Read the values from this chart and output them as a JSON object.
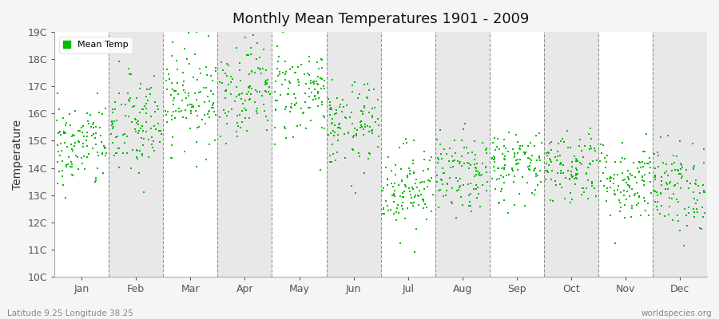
{
  "title": "Monthly Mean Temperatures 1901 - 2009",
  "ylabel": "Temperature",
  "xlabel_labels": [
    "Jan",
    "Feb",
    "Mar",
    "Apr",
    "May",
    "Jun",
    "Jul",
    "Aug",
    "Sep",
    "Oct",
    "Nov",
    "Dec"
  ],
  "ytick_labels": [
    "10C",
    "11C",
    "12C",
    "13C",
    "14C",
    "15C",
    "16C",
    "17C",
    "18C",
    "19C"
  ],
  "ytick_values": [
    10,
    11,
    12,
    13,
    14,
    15,
    16,
    17,
    18,
    19
  ],
  "ylim": [
    10,
    19
  ],
  "dot_color": "#00bb00",
  "background_color": "#f5f5f5",
  "band_colors": [
    "#ffffff",
    "#e8e8e8"
  ],
  "legend_label": "Mean Temp",
  "subtitle": "Latitude 9.25 Longitude 38.25",
  "watermark": "worldspecies.org",
  "n_years": 109,
  "seed": 42,
  "monthly_means": [
    14.8,
    15.5,
    16.6,
    16.9,
    16.8,
    15.5,
    13.3,
    13.7,
    14.1,
    14.1,
    13.5,
    13.3
  ],
  "monthly_stds": [
    0.8,
    1.0,
    0.9,
    0.85,
    0.85,
    0.8,
    0.75,
    0.7,
    0.65,
    0.7,
    0.75,
    0.8
  ]
}
